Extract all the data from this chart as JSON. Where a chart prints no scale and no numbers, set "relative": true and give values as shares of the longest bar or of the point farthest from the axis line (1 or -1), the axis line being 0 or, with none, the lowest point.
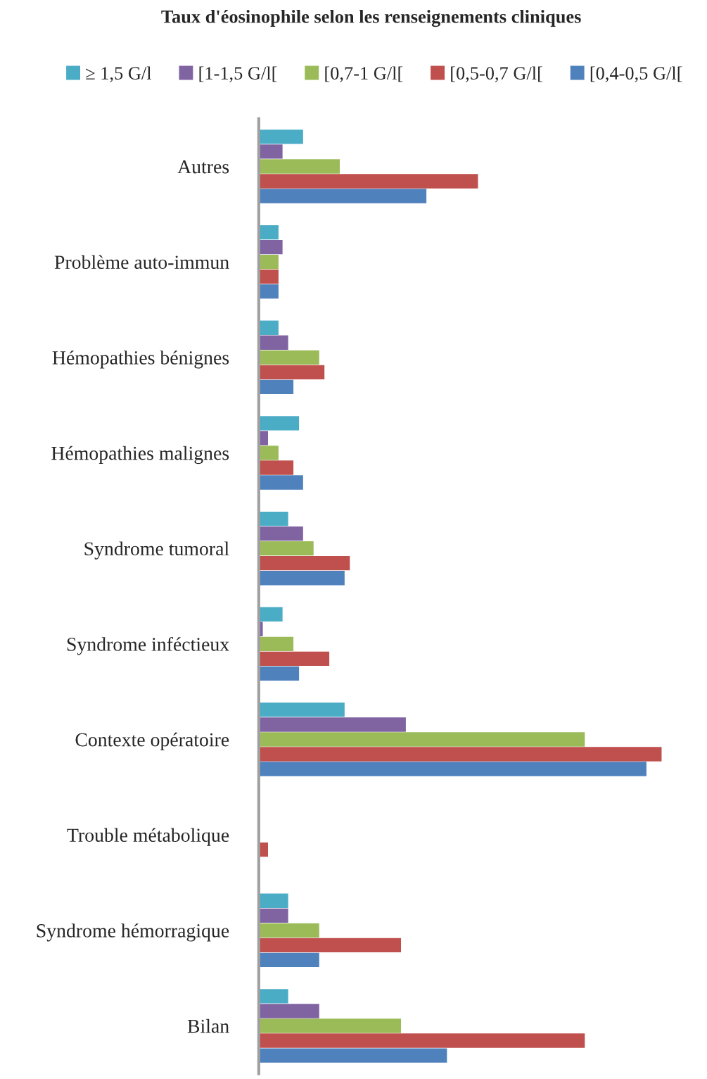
{
  "chart_data": {
    "type": "bar",
    "orientation": "horizontal",
    "relative": true,
    "title": "Taux d'éosinophile selon les renseignements cliniques",
    "categories": [
      "Autres",
      "Problème auto-immun",
      "Hémopathies bénignes",
      "Hémopathies malignes",
      "Syndrome tumoral",
      "Syndrome inféctieux",
      "Contexte opératoire",
      "Trouble métabolique",
      "Syndrome hémorragique",
      "Bilan"
    ],
    "series": [
      {
        "name": "≥ 1,5 G/l",
        "color": "#4bacc6",
        "values": [
          0.11,
          0.049,
          0.049,
          0.1,
          0.073,
          0.059,
          0.213,
          0,
          0.073,
          0.073
        ]
      },
      {
        "name": "[1-1,5 G/l[",
        "color": "#8064a2",
        "values": [
          0.059,
          0.059,
          0.073,
          0.023,
          0.11,
          0.01,
          0.365,
          0,
          0.073,
          0.15
        ]
      },
      {
        "name": "[0,7-1 G/l[",
        "color": "#9bbb59",
        "values": [
          0.201,
          0.049,
          0.15,
          0.049,
          0.136,
          0.086,
          0.809,
          0,
          0.15,
          0.353
        ]
      },
      {
        "name": "[0,5-0,7 G/l[",
        "color": "#c0504d",
        "values": [
          0.544,
          0.049,
          0.163,
          0.086,
          0.226,
          0.175,
          1,
          0.023,
          0.353,
          0.809
        ]
      },
      {
        "name": "[0,4-0,5 G/l[",
        "color": "#4f81bd",
        "values": [
          0.416,
          0.049,
          0.086,
          0.11,
          0.213,
          0.1,
          0.962,
          0,
          0.15,
          0.467
        ]
      }
    ],
    "legend": "top",
    "grid": false
  }
}
